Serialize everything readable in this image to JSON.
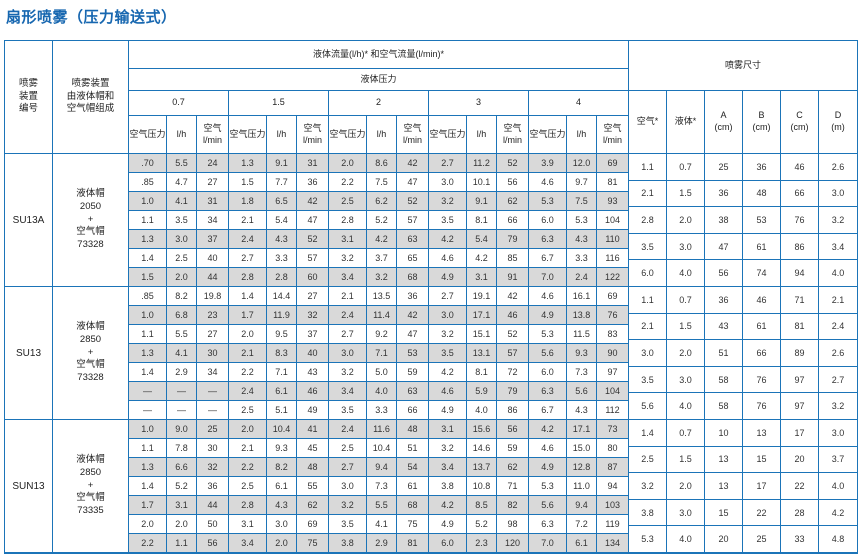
{
  "title": "扇形喷雾（压力输送式）",
  "colors": {
    "accent_blue": "#1767b0",
    "border_blue": "#1b74b8",
    "row_shade": "#d9d9d9",
    "text": "#333333"
  },
  "header": {
    "device_no": "喷雾\n装置\n编号",
    "device_comp": "喷雾装置\n由液体帽和\n空气帽组成",
    "flow_title": "液体流量(l/h)* 和空气流量(l/min)*",
    "pressure_title": "液体压力",
    "pressures": [
      "0.7",
      "1.5",
      "2",
      "3",
      "4"
    ],
    "sub_cols": [
      "空气压力",
      "l/h",
      "空气\nl/min"
    ],
    "spray_title": "喷雾尺寸",
    "spray_cols": [
      "空气*",
      "液体*",
      "A\n(cm)",
      "B\n(cm)",
      "C\n(cm)",
      "D\n(m)"
    ]
  },
  "groups": [
    {
      "id": "SU13A",
      "caps": "液体帽\n2050\n+\n空气帽\n73328",
      "rows": [
        [
          ".70",
          "5.5",
          "24",
          "1.3",
          "9.1",
          "31",
          "2.0",
          "8.6",
          "42",
          "2.7",
          "11.2",
          "52",
          "3.9",
          "12.0",
          "69"
        ],
        [
          ".85",
          "4.7",
          "27",
          "1.5",
          "7.7",
          "36",
          "2.2",
          "7.5",
          "47",
          "3.0",
          "10.1",
          "56",
          "4.6",
          "9.7",
          "81"
        ],
        [
          "1.0",
          "4.1",
          "31",
          "1.8",
          "6.5",
          "42",
          "2.5",
          "6.2",
          "52",
          "3.2",
          "9.1",
          "62",
          "5.3",
          "7.5",
          "93"
        ],
        [
          "1.1",
          "3.5",
          "34",
          "2.1",
          "5.4",
          "47",
          "2.8",
          "5.2",
          "57",
          "3.5",
          "8.1",
          "66",
          "6.0",
          "5.3",
          "104"
        ],
        [
          "1.3",
          "3.0",
          "37",
          "2.4",
          "4.3",
          "52",
          "3.1",
          "4.2",
          "63",
          "4.2",
          "5.4",
          "79",
          "6.3",
          "4.3",
          "110"
        ],
        [
          "1.4",
          "2.5",
          "40",
          "2.7",
          "3.3",
          "57",
          "3.2",
          "3.7",
          "65",
          "4.6",
          "4.2",
          "85",
          "6.7",
          "3.3",
          "116"
        ],
        [
          "1.5",
          "2.0",
          "44",
          "2.8",
          "2.8",
          "60",
          "3.4",
          "3.2",
          "68",
          "4.9",
          "3.1",
          "91",
          "7.0",
          "2.4",
          "122"
        ]
      ],
      "spray": [
        [
          "1.1",
          "0.7",
          "25",
          "36",
          "46",
          "2.6"
        ],
        [
          "2.1",
          "1.5",
          "36",
          "48",
          "66",
          "3.0"
        ],
        [
          "2.8",
          "2.0",
          "38",
          "53",
          "76",
          "3.2"
        ],
        [
          "3.5",
          "3.0",
          "47",
          "61",
          "86",
          "3.4"
        ],
        [
          "6.0",
          "4.0",
          "56",
          "74",
          "94",
          "4.0"
        ]
      ]
    },
    {
      "id": "SU13",
      "caps": "液体帽\n2850\n+\n空气帽\n73328",
      "rows": [
        [
          ".85",
          "8.2",
          "19.8",
          "1.4",
          "14.4",
          "27",
          "2.1",
          "13.5",
          "36",
          "2.7",
          "19.1",
          "42",
          "4.6",
          "16.1",
          "69"
        ],
        [
          "1.0",
          "6.8",
          "23",
          "1.7",
          "11.9",
          "32",
          "2.4",
          "11.4",
          "42",
          "3.0",
          "17.1",
          "46",
          "4.9",
          "13.8",
          "76"
        ],
        [
          "1.1",
          "5.5",
          "27",
          "2.0",
          "9.5",
          "37",
          "2.7",
          "9.2",
          "47",
          "3.2",
          "15.1",
          "52",
          "5.3",
          "11.5",
          "83"
        ],
        [
          "1.3",
          "4.1",
          "30",
          "2.1",
          "8.3",
          "40",
          "3.0",
          "7.1",
          "53",
          "3.5",
          "13.1",
          "57",
          "5.6",
          "9.3",
          "90"
        ],
        [
          "1.4",
          "2.9",
          "34",
          "2.2",
          "7.1",
          "43",
          "3.2",
          "5.0",
          "59",
          "4.2",
          "8.1",
          "72",
          "6.0",
          "7.3",
          "97"
        ],
        [
          "—",
          "—",
          "—",
          "2.4",
          "6.1",
          "46",
          "3.4",
          "4.0",
          "63",
          "4.6",
          "5.9",
          "79",
          "6.3",
          "5.6",
          "104"
        ],
        [
          "—",
          "—",
          "—",
          "2.5",
          "5.1",
          "49",
          "3.5",
          "3.3",
          "66",
          "4.9",
          "4.0",
          "86",
          "6.7",
          "4.3",
          "112"
        ]
      ],
      "spray": [
        [
          "1.1",
          "0.7",
          "36",
          "46",
          "71",
          "2.1"
        ],
        [
          "2.1",
          "1.5",
          "43",
          "61",
          "81",
          "2.4"
        ],
        [
          "3.0",
          "2.0",
          "51",
          "66",
          "89",
          "2.6"
        ],
        [
          "3.5",
          "3.0",
          "58",
          "76",
          "97",
          "2.7"
        ],
        [
          "5.6",
          "4.0",
          "58",
          "76",
          "97",
          "3.2"
        ]
      ]
    },
    {
      "id": "SUN13",
      "caps": "液体帽\n2850\n+\n空气帽\n73335",
      "rows": [
        [
          "1.0",
          "9.0",
          "25",
          "2.0",
          "10.4",
          "41",
          "2.4",
          "11.6",
          "48",
          "3.1",
          "15.6",
          "56",
          "4.2",
          "17.1",
          "73"
        ],
        [
          "1.1",
          "7.8",
          "30",
          "2.1",
          "9.3",
          "45",
          "2.5",
          "10.4",
          "51",
          "3.2",
          "14.6",
          "59",
          "4.6",
          "15.0",
          "80"
        ],
        [
          "1.3",
          "6.6",
          "32",
          "2.2",
          "8.2",
          "48",
          "2.7",
          "9.4",
          "54",
          "3.4",
          "13.7",
          "62",
          "4.9",
          "12.8",
          "87"
        ],
        [
          "1.4",
          "5.2",
          "36",
          "2.5",
          "6.1",
          "55",
          "3.0",
          "7.3",
          "61",
          "3.8",
          "10.8",
          "71",
          "5.3",
          "11.0",
          "94"
        ],
        [
          "1.7",
          "3.1",
          "44",
          "2.8",
          "4.3",
          "62",
          "3.2",
          "5.5",
          "68",
          "4.2",
          "8.5",
          "82",
          "5.6",
          "9.4",
          "103"
        ],
        [
          "2.0",
          "2.0",
          "50",
          "3.1",
          "3.0",
          "69",
          "3.5",
          "4.1",
          "75",
          "4.9",
          "5.2",
          "98",
          "6.3",
          "7.2",
          "119"
        ],
        [
          "2.2",
          "1.1",
          "56",
          "3.4",
          "2.0",
          "75",
          "3.8",
          "2.9",
          "81",
          "6.0",
          "2.3",
          "120",
          "7.0",
          "6.1",
          "134"
        ]
      ],
      "spray": [
        [
          "1.4",
          "0.7",
          "10",
          "13",
          "17",
          "3.0"
        ],
        [
          "2.5",
          "1.5",
          "13",
          "15",
          "20",
          "3.7"
        ],
        [
          "3.2",
          "2.0",
          "13",
          "17",
          "22",
          "4.0"
        ],
        [
          "3.8",
          "3.0",
          "15",
          "22",
          "28",
          "4.2"
        ],
        [
          "5.3",
          "4.0",
          "20",
          "25",
          "33",
          "4.8"
        ]
      ]
    }
  ]
}
